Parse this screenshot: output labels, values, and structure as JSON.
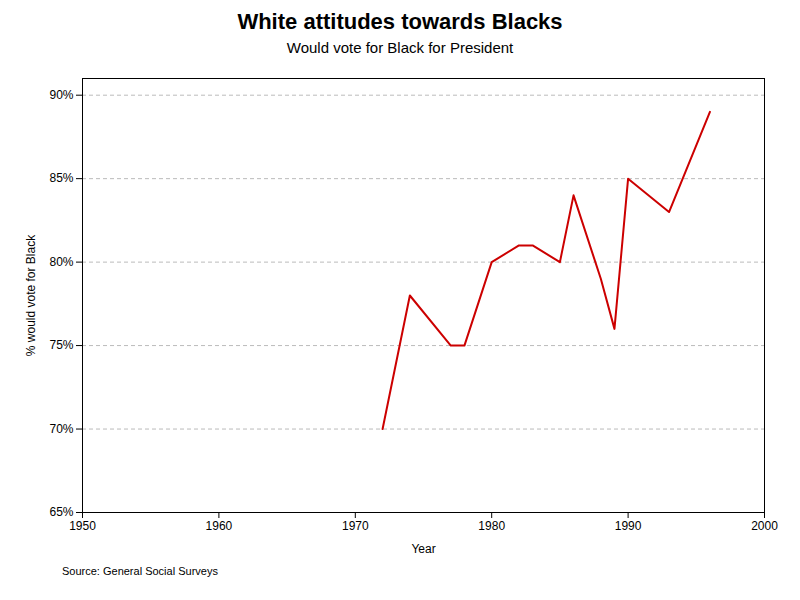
{
  "chart_data": {
    "type": "line",
    "title": "White attitudes towards Blacks",
    "subtitle": "Would vote for Black for President",
    "xlabel": "Year",
    "ylabel": "% would vote for Black",
    "source": "Source: General Social Surveys",
    "x": [
      1972,
      1974,
      1977,
      1978,
      1980,
      1982,
      1983,
      1985,
      1986,
      1988,
      1989,
      1990,
      1993,
      1996
    ],
    "values": [
      70,
      78,
      75,
      75,
      80,
      81,
      81,
      80,
      84,
      79,
      76,
      85,
      83,
      89
    ],
    "color": "#cc0000",
    "xlim": [
      1950,
      2000
    ],
    "xticks": [
      1950,
      1960,
      1970,
      1980,
      1990,
      2000
    ],
    "ylim": [
      65,
      91
    ],
    "yticks": [
      {
        "value": 65,
        "label": "65%"
      },
      {
        "value": 70,
        "label": "70%"
      },
      {
        "value": 75,
        "label": "75%"
      },
      {
        "value": 80,
        "label": "80%"
      },
      {
        "value": 85,
        "label": "85%"
      },
      {
        "value": 90,
        "label": "90%"
      }
    ],
    "grid": true
  }
}
